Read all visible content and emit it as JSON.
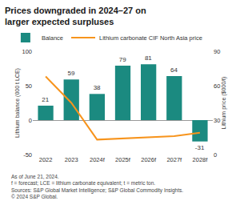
{
  "chart_data": {
    "type": "bar",
    "title": "Prices downgraded in 2024–27 on larger expected surpluses",
    "categories": [
      "2022",
      "2023",
      "2024f",
      "2025f",
      "2026f",
      "2027f",
      "2028f"
    ],
    "series": [
      {
        "name": "Balance",
        "type": "bar",
        "color": "#1b8a80",
        "values": [
          21,
          59,
          38,
          79,
          81,
          64,
          -31
        ],
        "data_labels": true
      },
      {
        "name": "Lithium carbonate CIF North Asia price",
        "type": "line",
        "color": "#f7941d",
        "axis": "y2",
        "values": [
          68,
          45,
          13,
          14,
          15,
          16,
          19
        ]
      }
    ],
    "ylabel": "Lithium balance (000 t LCE)",
    "y2label": "Lithium price ($000/t)",
    "ylim": [
      -50,
      100
    ],
    "yticks": [
      -50,
      0,
      50,
      100
    ],
    "y2lim": [
      0,
      90
    ],
    "y2ticks": [
      0,
      30,
      60,
      90
    ],
    "grid": false,
    "legend": "top",
    "annotations": [
      "As of June 21, 2024.",
      "f = forecast; LCE = lithium carbonate equivalent; t = metric ton.",
      "Sources: S&P Global Market Intelligence; S&P Global Commodity Insights.",
      "© 2024 S&P Global."
    ]
  }
}
